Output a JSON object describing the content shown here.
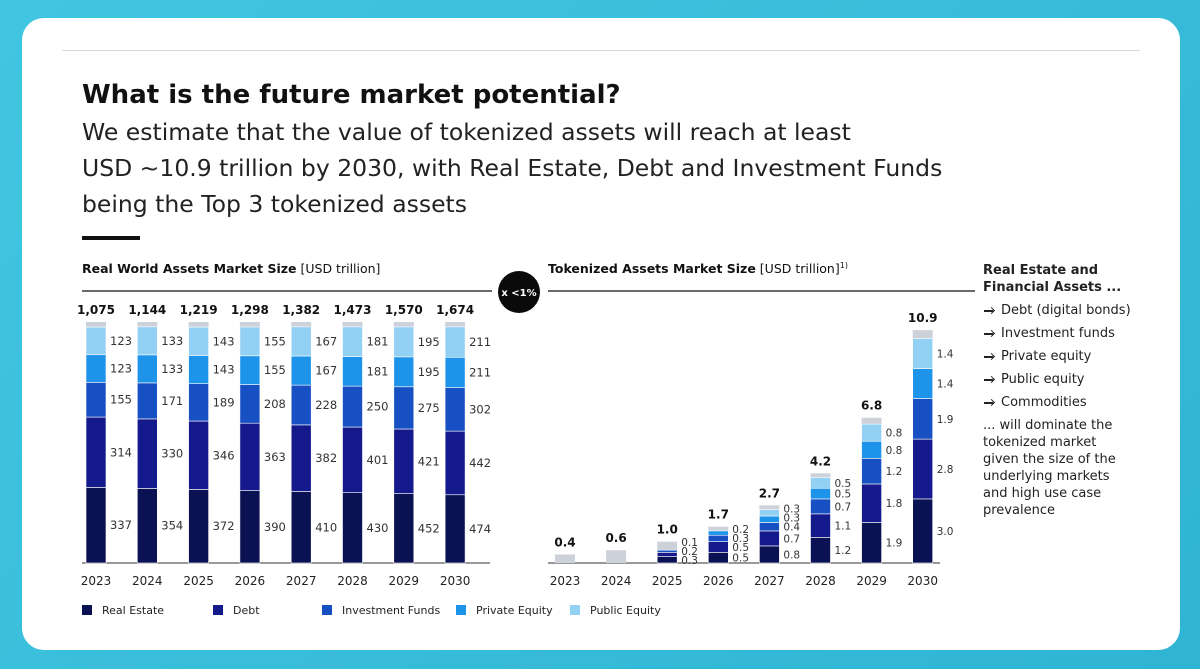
{
  "header": {
    "title": "What is the future market potential?",
    "subtitle_lines": [
      "We estimate that the value of tokenized assets will reach at least",
      "USD ~10.9 trillion by 2030, with Real Estate, Debt and Investment Funds",
      "being the Top 3 tokenized assets"
    ]
  },
  "connector": "x <1%",
  "side_note": {
    "heading": "Real Estate and Financial Assets ...",
    "items": [
      "Debt (digital bonds)",
      "Investment funds",
      "Private equity",
      "Public equity",
      "Commodities"
    ],
    "conclusion": "... will dominate the tokenized market given the size of the underlying markets and high use case prevalence"
  },
  "chart_data": [
    {
      "type": "bar",
      "stacked": "percent",
      "title": "Real World Assets Market Size",
      "unit": "[USD trillion]",
      "categories": [
        "2023",
        "2024",
        "2025",
        "2026",
        "2027",
        "2028",
        "2029",
        "2030"
      ],
      "totals": {
        "values": [
          1075,
          1144,
          1219,
          1298,
          1382,
          1473,
          1570,
          1674
        ],
        "value_labels": [
          "1,075",
          "1,144",
          "1,219",
          "1,298",
          "1,382",
          "1,473",
          "1,570",
          "1,674"
        ]
      },
      "series": [
        {
          "name": "Real Estate",
          "color": "#0b1254",
          "values": [
            337,
            354,
            372,
            390,
            410,
            430,
            452,
            474
          ]
        },
        {
          "name": "Debt",
          "color": "#141a8c",
          "values": [
            314,
            330,
            346,
            363,
            382,
            401,
            421,
            442
          ]
        },
        {
          "name": "Investment Funds",
          "color": "#1750c2",
          "values": [
            155,
            171,
            189,
            208,
            228,
            250,
            275,
            302
          ]
        },
        {
          "name": "Private Equity",
          "color": "#1e93ea",
          "values": [
            123,
            133,
            143,
            155,
            167,
            181,
            195,
            211
          ]
        },
        {
          "name": "Public Equity",
          "color": "#92d0f4",
          "values": [
            123,
            133,
            143,
            155,
            167,
            181,
            195,
            211
          ]
        }
      ]
    },
    {
      "type": "bar",
      "stacked": "normal",
      "title": "Tokenized Assets Market Size",
      "unit": "[USD trillion]",
      "note": "1)",
      "ylim": [
        0,
        11
      ],
      "categories": [
        "2023",
        "2024",
        "2025",
        "2026",
        "2027",
        "2028",
        "2029",
        "2030"
      ],
      "totals": {
        "values": [
          0.4,
          0.6,
          1.0,
          1.7,
          2.7,
          4.2,
          6.8,
          10.9
        ],
        "value_labels": [
          "0.4",
          "0.6",
          "1.0",
          "1.7",
          "2.7",
          "4.2",
          "6.8",
          "10.9"
        ]
      },
      "series": [
        {
          "name": "Real Estate",
          "color": "#0b1254",
          "values": [
            null,
            null,
            0.3,
            0.5,
            0.8,
            1.2,
            1.9,
            3.0
          ],
          "value_labels": [
            null,
            null,
            "0.3",
            "0.5",
            "0.8",
            "1.2",
            "1.9",
            "3.0"
          ]
        },
        {
          "name": "Debt",
          "color": "#141a8c",
          "values": [
            null,
            null,
            0.2,
            0.5,
            0.7,
            1.1,
            1.8,
            2.8
          ],
          "value_labels": [
            null,
            null,
            "0.2",
            "0.5",
            "0.7",
            "1.1",
            "1.8",
            "2.8"
          ]
        },
        {
          "name": "Investment Funds",
          "color": "#1750c2",
          "values": [
            null,
            null,
            0.1,
            0.3,
            0.4,
            0.7,
            1.2,
            1.9
          ],
          "value_labels": [
            null,
            null,
            "0.1",
            "0.3",
            "0.4",
            "0.7",
            "1.2",
            "1.9"
          ]
        },
        {
          "name": "Private Equity",
          "color": "#1e93ea",
          "values": [
            null,
            null,
            null,
            0.2,
            0.3,
            0.5,
            0.8,
            1.4
          ],
          "value_labels": [
            null,
            null,
            null,
            "0.2",
            "0.3",
            "0.5",
            "0.8",
            "1.4"
          ]
        },
        {
          "name": "Public Equity",
          "color": "#92d0f4",
          "values": [
            null,
            null,
            null,
            null,
            0.3,
            0.5,
            0.8,
            1.4
          ],
          "value_labels": [
            null,
            null,
            null,
            null,
            "0.3",
            "0.5",
            "0.8",
            "1.4"
          ]
        }
      ]
    }
  ]
}
